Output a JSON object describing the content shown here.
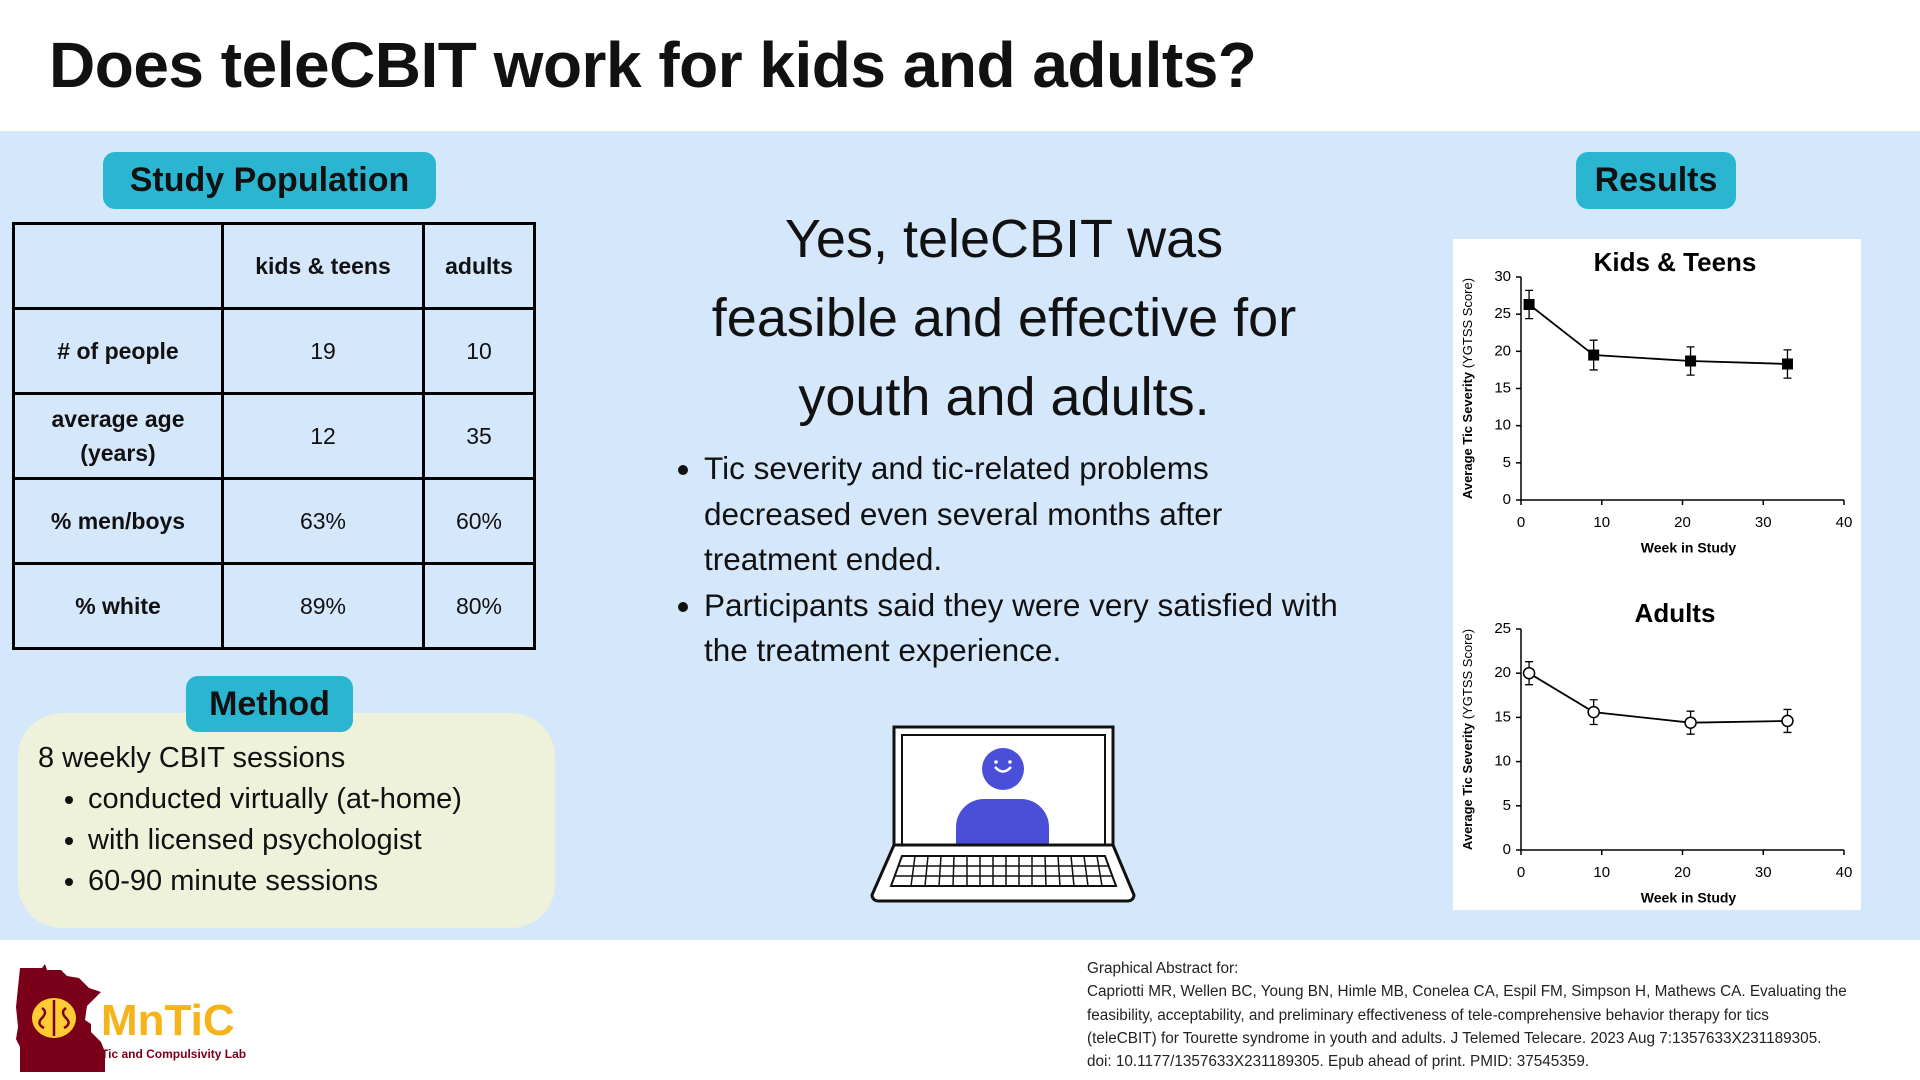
{
  "header": {
    "title": "Does teleCBIT work for kids and adults?"
  },
  "study_population": {
    "label": "Study Population",
    "columns": [
      "kids & teens",
      "adults"
    ],
    "rows": [
      [
        "# of people",
        "19",
        "10"
      ],
      [
        "average age (years)",
        "12",
        "35"
      ],
      [
        "% men/boys",
        "63%",
        "60%"
      ],
      [
        "% white",
        "89%",
        "80%"
      ]
    ]
  },
  "method": {
    "label": "Method",
    "intro": "8 weekly CBIT sessions",
    "items": [
      "conducted virtually (at-home)",
      "with licensed psychologist",
      "60-90 minute sessions"
    ]
  },
  "conclusion": {
    "headline": [
      "Yes, teleCBIT was",
      "feasible and effective for",
      "youth and adults."
    ],
    "bullets": [
      "Tic severity and tic-related problems decreased even several months after treatment ended.",
      "Participants said they were very satisfied with the treatment experience."
    ]
  },
  "results": {
    "label": "Results",
    "charts": [
      {
        "type": "line",
        "title": "Kids & Teens",
        "x_label": "Week in Study",
        "y_label": "Average Tic Severity",
        "y_label_note": "(YGTSS Score)",
        "x": [
          1,
          9,
          21,
          33
        ],
        "series": [
          {
            "color": "#000000",
            "marker": "square",
            "values": [
              26.3,
              19.5,
              18.7,
              18.3
            ],
            "errors": [
              1.9,
              2.0,
              1.9,
              1.9
            ]
          }
        ],
        "xlim": [
          0,
          40
        ],
        "xticks": [
          0,
          10,
          20,
          30,
          40
        ],
        "ylim": [
          0,
          30
        ],
        "yticks": [
          0,
          5,
          10,
          15,
          20,
          25,
          30
        ]
      },
      {
        "type": "line",
        "title": "Adults",
        "x_label": "Week in Study",
        "y_label": "Average Tic Severity",
        "y_label_note": "(YGTSS Score)",
        "x": [
          1,
          9,
          21,
          33
        ],
        "series": [
          {
            "color": "#000000",
            "marker": "open-circle",
            "values": [
              20.0,
              15.6,
              14.4,
              14.6
            ],
            "errors": [
              1.3,
              1.4,
              1.3,
              1.3
            ]
          }
        ],
        "xlim": [
          0,
          40
        ],
        "xticks": [
          0,
          10,
          20,
          30,
          40
        ],
        "ylim": [
          0,
          25
        ],
        "yticks": [
          0,
          5,
          10,
          15,
          20,
          25
        ]
      }
    ]
  },
  "footer": {
    "logo": {
      "name": "MnTiC",
      "subtitle": "Tic and Compulsivity Lab"
    },
    "citation": [
      "Graphical Abstract for:",
      "Capriotti MR, Wellen BC, Young BN, Himle MB, Conelea CA, Espil FM, Simpson H, Mathews CA. Evaluating the",
      "feasibility, acceptability, and preliminary effectiveness of tele-comprehensive behavior therapy for tics",
      "(teleCBIT) for Tourette syndrome in youth and adults. J Telemed Telecare. 2023 Aug 7:1357633X231189305.",
      "doi: 10.1177/1357633X231189305. Epub ahead of print. PMID: 37545359."
    ]
  }
}
